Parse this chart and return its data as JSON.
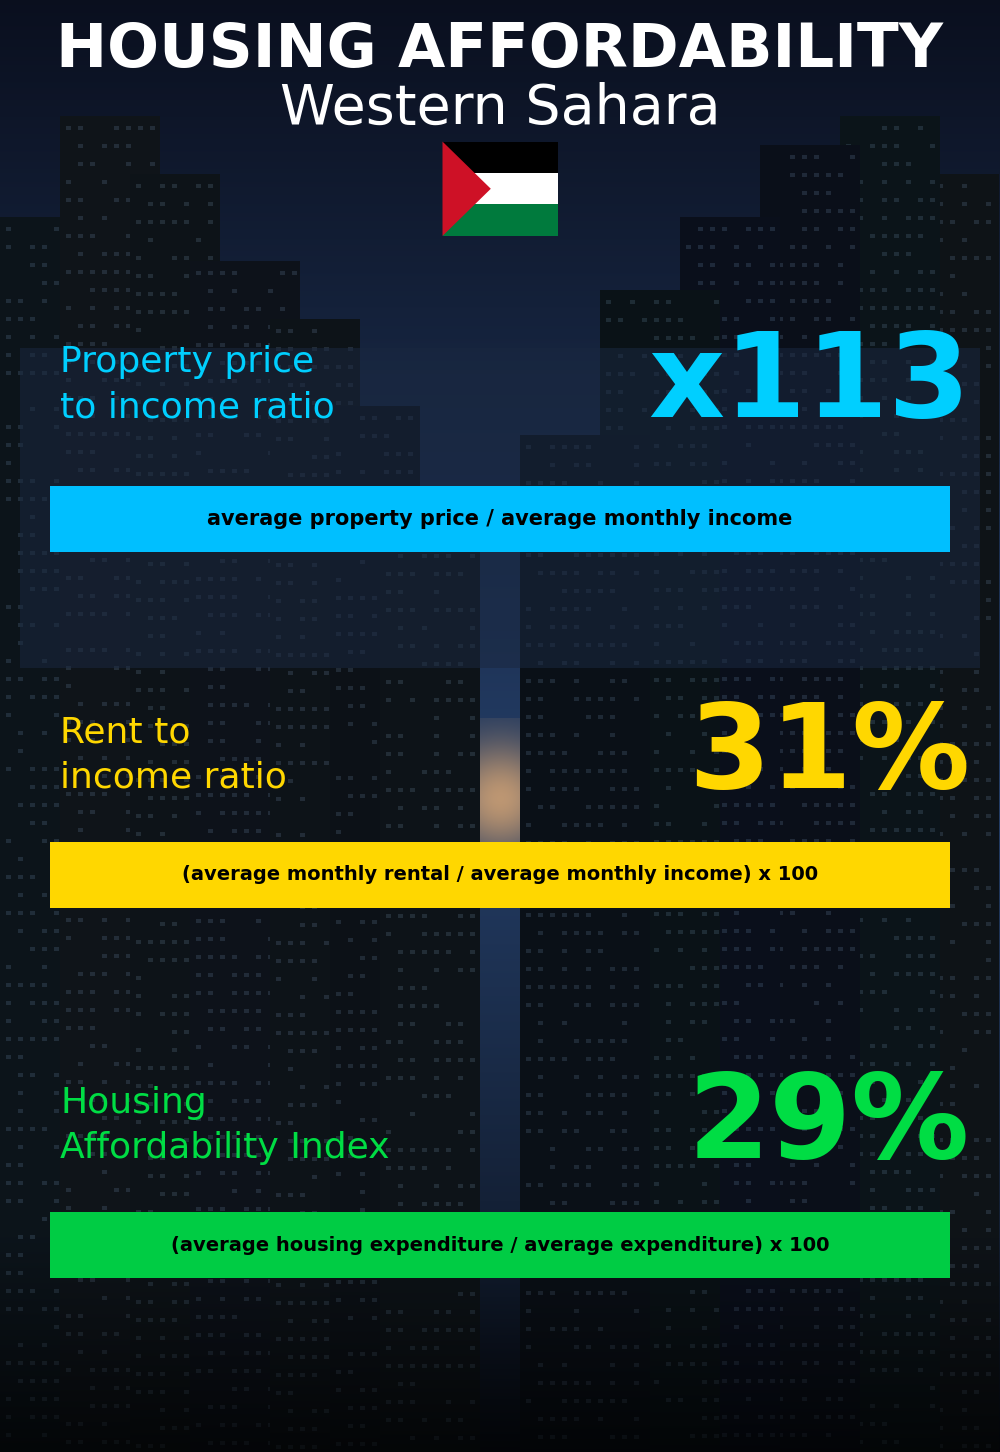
{
  "title_line1": "HOUSING AFFORDABILITY",
  "title_line2": "Western Sahara",
  "section1_label": "Property price\nto income ratio",
  "section1_value": "x113",
  "section1_label_color": "#00CFFF",
  "section1_value_color": "#00CFFF",
  "section1_formula": "average property price / average monthly income",
  "section1_formula_bg": "#00BFFF",
  "section2_label": "Rent to\nincome ratio",
  "section2_value": "31%",
  "section2_label_color": "#FFD700",
  "section2_value_color": "#FFD700",
  "section2_formula": "(average monthly rental / average monthly income) x 100",
  "section2_formula_bg": "#FFD700",
  "section3_label": "Housing\nAffordability Index",
  "section3_value": "29%",
  "section3_label_color": "#00DD44",
  "section3_value_color": "#00DD44",
  "section3_formula": "(average housing expenditure / average expenditure) x 100",
  "section3_formula_bg": "#00CC44",
  "background_color": "#080c14",
  "title_color": "#FFFFFF",
  "formula_text_color": "#000000",
  "overlay1_color": "#1e2d3d",
  "overlay1_alpha": 0.6,
  "fig_width": 10.0,
  "fig_height": 14.52,
  "dpi": 100
}
